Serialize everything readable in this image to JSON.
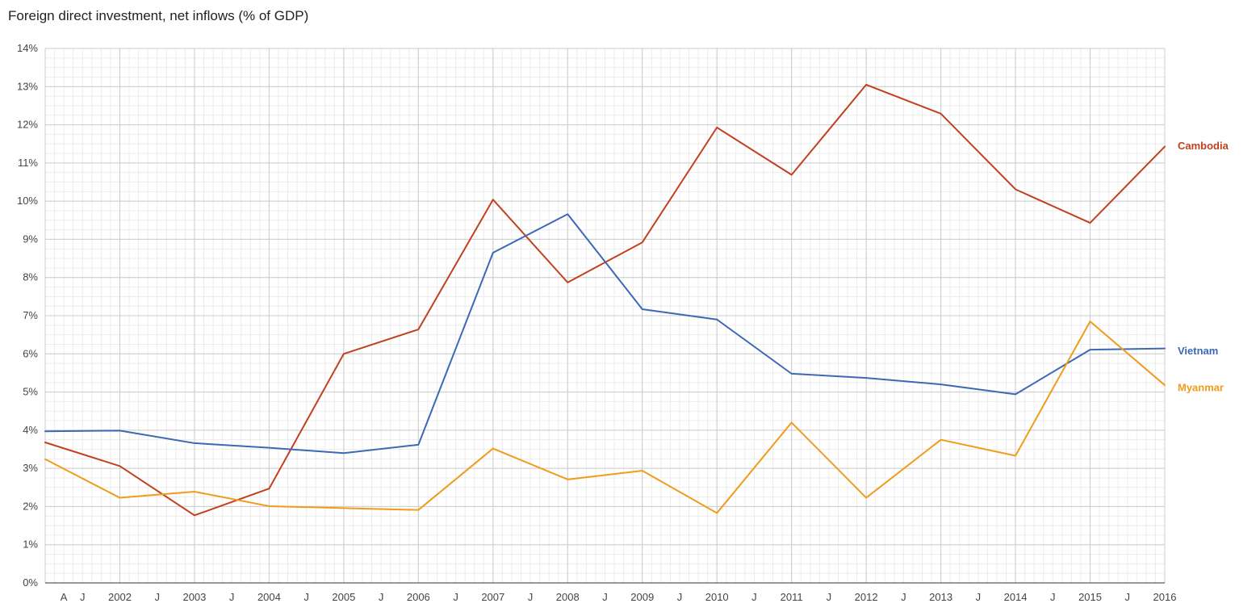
{
  "chart_data": {
    "type": "line",
    "title": "Foreign direct investment, net inflows (% of GDP)",
    "xlabel": "",
    "ylabel": "",
    "ylim": [
      0,
      14
    ],
    "xlim": [
      2001,
      2016
    ],
    "y_ticks": [
      "0%",
      "1%",
      "2%",
      "3%",
      "4%",
      "5%",
      "6%",
      "7%",
      "8%",
      "9%",
      "10%",
      "11%",
      "12%",
      "13%",
      "14%"
    ],
    "x_ticks": [
      {
        "x": 2001.25,
        "label": "A"
      },
      {
        "x": 2001.5,
        "label": "J"
      },
      {
        "x": 2002,
        "label": "2002"
      },
      {
        "x": 2002.5,
        "label": "J"
      },
      {
        "x": 2003,
        "label": "2003"
      },
      {
        "x": 2003.5,
        "label": "J"
      },
      {
        "x": 2004,
        "label": "2004"
      },
      {
        "x": 2004.5,
        "label": "J"
      },
      {
        "x": 2005,
        "label": "2005"
      },
      {
        "x": 2005.5,
        "label": "J"
      },
      {
        "x": 2006,
        "label": "2006"
      },
      {
        "x": 2006.5,
        "label": "J"
      },
      {
        "x": 2007,
        "label": "2007"
      },
      {
        "x": 2007.5,
        "label": "J"
      },
      {
        "x": 2008,
        "label": "2008"
      },
      {
        "x": 2008.5,
        "label": "J"
      },
      {
        "x": 2009,
        "label": "2009"
      },
      {
        "x": 2009.5,
        "label": "J"
      },
      {
        "x": 2010,
        "label": "2010"
      },
      {
        "x": 2010.5,
        "label": "J"
      },
      {
        "x": 2011,
        "label": "2011"
      },
      {
        "x": 2011.5,
        "label": "J"
      },
      {
        "x": 2012,
        "label": "2012"
      },
      {
        "x": 2012.5,
        "label": "J"
      },
      {
        "x": 2013,
        "label": "2013"
      },
      {
        "x": 2013.5,
        "label": "J"
      },
      {
        "x": 2014,
        "label": "2014"
      },
      {
        "x": 2014.5,
        "label": "J"
      },
      {
        "x": 2015,
        "label": "2015"
      },
      {
        "x": 2015.5,
        "label": "J"
      },
      {
        "x": 2016,
        "label": "2016"
      }
    ],
    "grid": true,
    "legend": "labels at right end of each series",
    "series": [
      {
        "name": "Cambodia",
        "color": "#c2401f",
        "x": [
          2001,
          2002,
          2003,
          2004,
          2005,
          2006,
          2007,
          2008,
          2009,
          2010,
          2011,
          2012,
          2013,
          2014,
          2015,
          2016
        ],
        "values": [
          3.68,
          3.06,
          1.77,
          2.47,
          6.0,
          6.64,
          10.04,
          7.87,
          8.92,
          11.93,
          10.69,
          13.05,
          12.29,
          10.31,
          9.43,
          11.43
        ]
      },
      {
        "name": "Vietnam",
        "color": "#3c68b5",
        "x": [
          2001,
          2002,
          2003,
          2004,
          2005,
          2006,
          2007,
          2008,
          2009,
          2010,
          2011,
          2012,
          2013,
          2014,
          2015,
          2016
        ],
        "values": [
          3.97,
          3.99,
          3.66,
          3.54,
          3.4,
          3.62,
          8.65,
          9.66,
          7.17,
          6.9,
          5.48,
          5.37,
          5.2,
          4.94,
          6.11,
          6.14
        ]
      },
      {
        "name": "Myanmar",
        "color": "#f09c1b",
        "x": [
          2001,
          2002,
          2003,
          2004,
          2005,
          2006,
          2007,
          2008,
          2009,
          2010,
          2011,
          2012,
          2013,
          2014,
          2015,
          2016
        ],
        "values": [
          3.24,
          2.23,
          2.39,
          2.01,
          1.96,
          1.91,
          3.52,
          2.71,
          2.94,
          1.83,
          4.2,
          2.23,
          3.75,
          3.33,
          6.85,
          5.18
        ]
      }
    ]
  }
}
